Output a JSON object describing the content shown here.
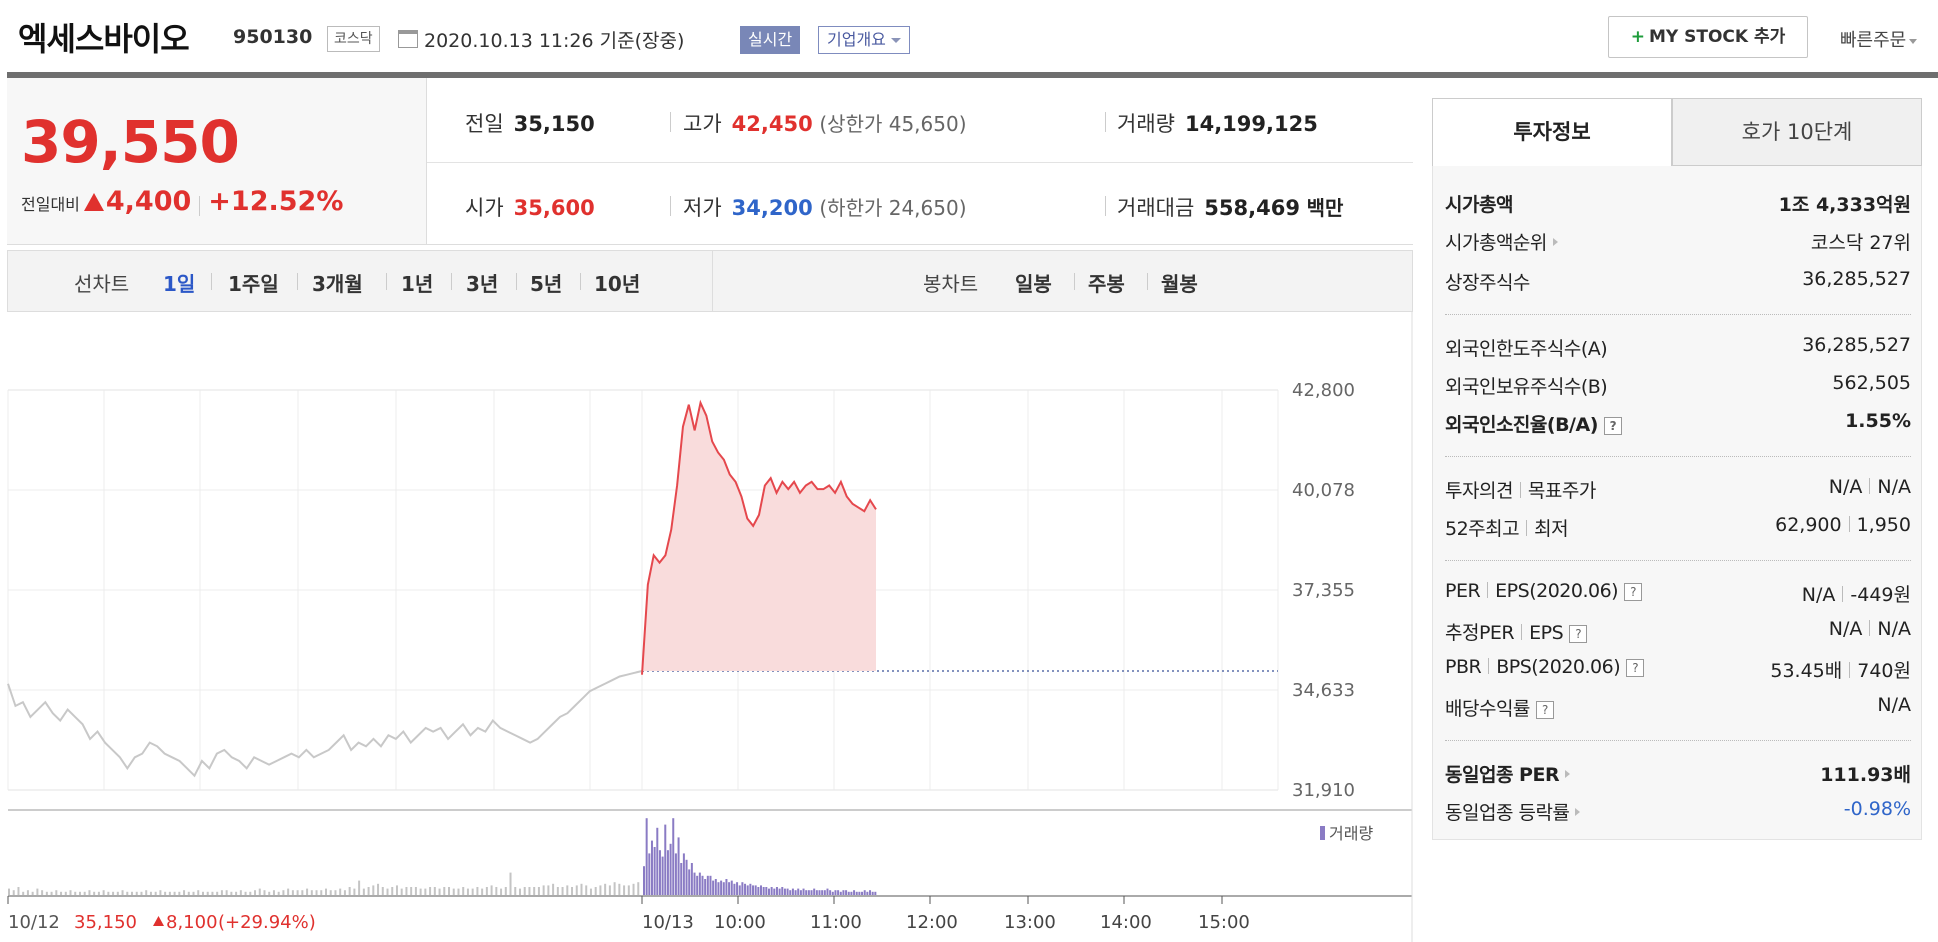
{
  "header": {
    "name": "엑세스바이오",
    "code": "950130",
    "market": "코스닥",
    "date": "2020.10.13 11:26 기준(장중)",
    "realtime_label": "실시간",
    "overview_label": "기업개요",
    "mystock_label": "MY STOCK 추가",
    "mystock_plus": "+",
    "quick_order_label": "빠른주문"
  },
  "price": {
    "current": "39,550",
    "change_label": "전일대비",
    "change": "4,400",
    "change_pct": "+12.52%"
  },
  "stats": {
    "prev_close_label": "전일",
    "prev_close": "35,150",
    "high_label": "고가",
    "high": "42,450",
    "upper_limit": "(상한가 45,650)",
    "volume_label": "거래량",
    "volume": "14,199,125",
    "open_label": "시가",
    "open": "35,600",
    "low_label": "저가",
    "low": "34,200",
    "lower_limit": "(하한가 24,650)",
    "amount_label": "거래대금",
    "amount": "558,469",
    "amount_unit": "백만"
  },
  "line_chart_tabs": {
    "label": "선차트",
    "items": [
      "1일",
      "1주일",
      "3개월",
      "1년",
      "3년",
      "5년",
      "10년"
    ],
    "active": "1일"
  },
  "candle_chart_tabs": {
    "label": "봉차트",
    "items": [
      "일봉",
      "주봉",
      "월봉"
    ]
  },
  "invest_tabs": {
    "active": "투자정보",
    "other": "호가 10단계"
  },
  "invest": {
    "market_cap_label": "시가총액",
    "market_cap": "1조 4,333억원",
    "market_cap_rank_label": "시가총액순위",
    "market_cap_rank": "코스닥 27위",
    "listed_shares_label": "상장주식수",
    "listed_shares": "36,285,527",
    "foreign_limit_label": "외국인한도주식수(A)",
    "foreign_limit": "36,285,527",
    "foreign_hold_label": "외국인보유주식수(B)",
    "foreign_hold": "562,505",
    "foreign_rate_label": "외국인소진율(B/A)",
    "foreign_rate": "1.55%",
    "opinion_label": "투자의견",
    "target_label": "목표주가",
    "opinion": "N/A",
    "target": "N/A",
    "high52_label": "52주최고",
    "low52_label": "최저",
    "high52": "62,900",
    "low52": "1,950",
    "per_label": "PER",
    "eps_label": "EPS(2020.06)",
    "per": "N/A",
    "eps": "-449원",
    "est_per_label": "추정PER",
    "est_eps_label": "EPS",
    "est_per": "N/A",
    "est_eps": "N/A",
    "pbr_label": "PBR",
    "bps_label": "BPS(2020.06)",
    "pbr": "53.45배",
    "bps": "740원",
    "dividend_label": "배당수익률",
    "dividend": "N/A",
    "industry_per_label": "동일업종 PER",
    "industry_per": "111.93배",
    "industry_change_label": "동일업종 등락률",
    "industry_change": "-0.98%"
  },
  "chart_data": {
    "type": "line",
    "y_ticks": [
      "42,800",
      "40,078",
      "37,355",
      "34,633",
      "31,910"
    ],
    "ylim": [
      31910,
      42800
    ],
    "x_ticks": [
      "10/13",
      "10:00",
      "11:00",
      "12:00",
      "13:00",
      "14:00",
      "15:00"
    ],
    "prev_day_summary": {
      "date": "10/12",
      "close": "35,150",
      "change": "8,100",
      "change_pct": "(+29.94%)"
    },
    "volume_legend": "거래량",
    "baseline": 35150,
    "previous_day": {
      "values": [
        34800,
        34200,
        34300,
        33900,
        34100,
        34300,
        34000,
        33800,
        34100,
        33900,
        33700,
        33300,
        33500,
        33200,
        33000,
        32800,
        32500,
        32800,
        32900,
        33200,
        33100,
        32900,
        32800,
        32700,
        32500,
        32300,
        32700,
        32500,
        32900,
        33000,
        32800,
        32700,
        32500,
        32800,
        32700,
        32600,
        32700,
        32800,
        32900,
        32800,
        33000,
        32800,
        32900,
        33000,
        33200,
        33400,
        33000,
        33200,
        33100,
        33300,
        33100,
        33400,
        33300,
        33500,
        33200,
        33400,
        33600,
        33500,
        33600,
        33300,
        33500,
        33700,
        33400,
        33600,
        33500,
        33800,
        33600,
        33500,
        33400,
        33300,
        33200,
        33300,
        33500,
        33700,
        33900,
        34000,
        34200,
        34400,
        34600,
        34700,
        34800,
        34900,
        35000,
        35050,
        35100,
        35150
      ]
    },
    "today": {
      "values": [
        35050,
        37500,
        38300,
        38100,
        38300,
        39000,
        40200,
        41800,
        42400,
        41700,
        42450,
        42100,
        41400,
        41100,
        40900,
        40500,
        40300,
        39900,
        39300,
        39100,
        39400,
        40200,
        40400,
        40000,
        40300,
        40100,
        40300,
        40000,
        40200,
        40300,
        40100,
        40100,
        40200,
        40000,
        40300,
        39900,
        39700,
        39600,
        39500,
        39800,
        39550
      ]
    },
    "previous_day_volume": [
      4,
      3,
      5,
      2,
      3,
      2,
      4,
      3,
      2,
      2,
      3,
      2,
      2,
      3,
      2,
      2,
      2,
      3,
      2,
      2,
      3,
      2,
      2,
      2,
      3,
      2,
      2,
      2,
      2,
      3,
      2,
      2,
      3,
      2,
      2,
      2,
      2,
      3,
      2,
      2,
      3,
      2,
      2,
      2,
      2,
      3,
      3,
      2,
      2,
      3,
      2,
      2,
      3,
      4,
      3,
      2,
      3,
      2,
      3,
      4,
      3,
      3,
      3,
      4,
      3,
      3,
      3,
      4,
      3,
      3,
      4,
      3,
      5,
      4,
      9,
      4,
      5,
      6,
      7,
      5,
      4,
      5,
      6,
      4,
      5,
      5,
      5,
      4,
      4,
      5,
      5,
      4,
      5,
      5,
      4,
      4,
      5,
      4,
      4,
      5,
      4,
      5,
      6,
      5,
      4,
      5,
      14,
      5,
      4,
      5,
      5,
      5,
      5,
      6,
      6,
      7,
      5,
      5,
      6,
      5,
      6,
      7,
      6,
      4,
      5,
      6,
      7,
      6,
      8,
      7,
      6,
      6,
      7,
      8
    ],
    "today_volume": [
      18,
      48,
      26,
      34,
      30,
      42,
      28,
      24,
      44,
      28,
      32,
      48,
      26,
      36,
      20,
      26,
      22,
      16,
      20,
      14,
      12,
      14,
      12,
      10,
      12,
      12,
      9,
      10,
      8,
      9,
      8,
      10,
      8,
      9,
      7,
      8,
      6,
      8,
      7,
      6,
      7,
      6,
      6,
      5,
      6,
      5,
      5,
      4,
      5,
      4,
      5,
      4,
      5,
      4,
      4,
      3,
      4,
      3,
      4,
      3,
      4,
      3,
      3,
      3,
      4,
      3,
      3,
      3,
      3,
      4,
      3,
      2,
      3,
      3,
      2,
      3,
      3,
      2,
      2,
      3,
      2,
      2,
      2,
      3,
      2,
      3,
      2,
      2
    ]
  }
}
